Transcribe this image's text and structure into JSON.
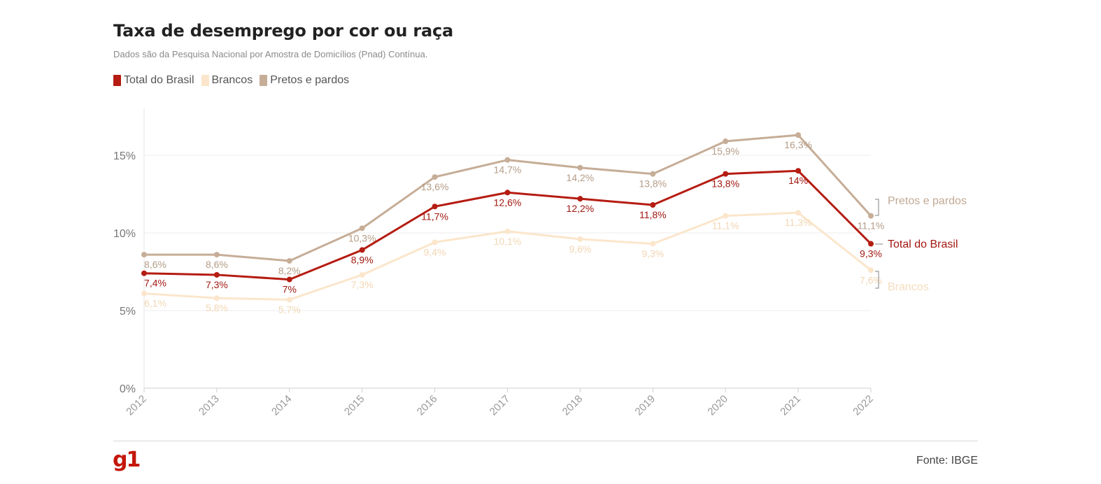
{
  "header": {
    "title": "Taxa de desemprego por cor ou raça",
    "subtitle": "Dados são da Pesquisa Nacional por Amostra de Domicílios (Pnad) Contínua."
  },
  "legend": [
    {
      "label": "Total do Brasil",
      "color": "#b51c12"
    },
    {
      "label": "Brancos",
      "color": "#fbe6cc"
    },
    {
      "label": "Pretos e pardos",
      "color": "#c6ad97"
    }
  ],
  "chart_data": {
    "type": "line",
    "title": "Taxa de desemprego por cor ou raça",
    "x": [
      "2012",
      "2013",
      "2014",
      "2015",
      "2016",
      "2017",
      "2018",
      "2019",
      "2020",
      "2021",
      "2022"
    ],
    "y_ticks": [
      "0%",
      "5%",
      "10%",
      "15%"
    ],
    "ylim": [
      0,
      17.5
    ],
    "grid": true,
    "legend_placement": "top-left",
    "series": [
      {
        "name": "Pretos e pardos",
        "color": "#c6ad97",
        "values": [
          8.6,
          8.6,
          8.2,
          10.3,
          13.6,
          14.7,
          14.2,
          13.8,
          15.9,
          16.3,
          11.1
        ],
        "labels": [
          "8,6%",
          "8,6%",
          "8,2%",
          "10,3%",
          "13,6%",
          "14,7%",
          "14,2%",
          "13,8%",
          "15,9%",
          "16,3%",
          "11,1%"
        ],
        "end_label": "Pretos e pardos"
      },
      {
        "name": "Brancos",
        "color": "#fbe6cc",
        "values": [
          6.1,
          5.8,
          5.7,
          7.3,
          9.4,
          10.1,
          9.6,
          9.3,
          11.1,
          11.3,
          7.6
        ],
        "labels": [
          "6,1%",
          "5,8%",
          "5,7%",
          "7,3%",
          "9,4%",
          "10,1%",
          "9,6%",
          "9,3%",
          "11,1%",
          "11,3%",
          "7,6%"
        ],
        "end_label": "Brancos"
      },
      {
        "name": "Total do Brasil",
        "color": "#b51c12",
        "values": [
          7.4,
          7.3,
          7.0,
          8.9,
          11.7,
          12.6,
          12.2,
          11.8,
          13.8,
          14.0,
          9.3
        ],
        "labels": [
          "7,4%",
          "7,3%",
          "7%",
          "8,9%",
          "11,7%",
          "12,6%",
          "12,2%",
          "11,8%",
          "13,8%",
          "14%",
          "9,3%"
        ],
        "end_label": "Total do Brasil"
      }
    ]
  },
  "footer": {
    "logo": "g1",
    "source": "Fonte: IBGE"
  }
}
